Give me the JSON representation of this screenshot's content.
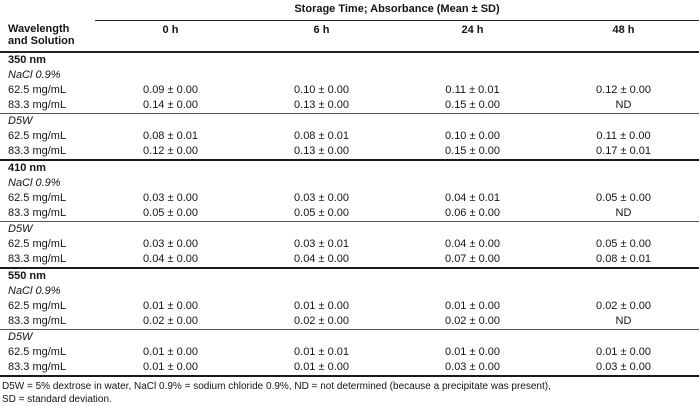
{
  "table": {
    "span_header": "Storage Time; Absorbance (Mean ± SD)",
    "row_header_line1": "Wavelength",
    "row_header_line2": "and Solution",
    "columns": [
      "0 h",
      "6 h",
      "24 h",
      "48 h"
    ],
    "sections": [
      {
        "wavelength": "350 nm",
        "groups": [
          {
            "solution": "NaCl 0.9%",
            "rows": [
              {
                "label": "62.5 mg/mL",
                "values": [
                  "0.09 ± 0.00",
                  "0.10 ± 0.00",
                  "0.11 ± 0.01",
                  "0.12 ± 0.00"
                ]
              },
              {
                "label": "83.3 mg/mL",
                "values": [
                  "0.14 ± 0.00",
                  "0.13 ± 0.00",
                  "0.15 ± 0.00",
                  "ND"
                ]
              }
            ]
          },
          {
            "solution": "D5W",
            "rows": [
              {
                "label": "62.5 mg/mL",
                "values": [
                  "0.08 ± 0.01",
                  "0.08 ± 0.01",
                  "0.10 ± 0.00",
                  "0.11 ± 0.00"
                ]
              },
              {
                "label": "83.3 mg/mL",
                "values": [
                  "0.12 ± 0.00",
                  "0.13 ± 0.00",
                  "0.15 ± 0.00",
                  "0.17 ± 0.01"
                ]
              }
            ]
          }
        ]
      },
      {
        "wavelength": "410 nm",
        "groups": [
          {
            "solution": "NaCl 0.9%",
            "rows": [
              {
                "label": "62.5 mg/mL",
                "values": [
                  "0.03 ± 0.00",
                  "0.03 ± 0.00",
                  "0.04 ± 0.01",
                  "0.05 ± 0.00"
                ]
              },
              {
                "label": "83.3 mg/mL",
                "values": [
                  "0.05 ± 0.00",
                  "0.05 ± 0.00",
                  "0.06 ± 0.00",
                  "ND"
                ]
              }
            ]
          },
          {
            "solution": "D5W",
            "rows": [
              {
                "label": "62.5 mg/mL",
                "values": [
                  "0.03 ± 0.00",
                  "0.03 ± 0.01",
                  "0.04 ± 0.00",
                  "0.05 ± 0.00"
                ]
              },
              {
                "label": "83.3 mg/mL",
                "values": [
                  "0.04 ± 0.00",
                  "0.04 ± 0.00",
                  "0.07 ± 0.00",
                  "0.08 ± 0.01"
                ]
              }
            ]
          }
        ]
      },
      {
        "wavelength": "550 nm",
        "groups": [
          {
            "solution": "NaCl 0.9%",
            "rows": [
              {
                "label": "62.5 mg/mL",
                "values": [
                  "0.01 ± 0.00",
                  "0.01 ± 0.00",
                  "0.01 ± 0.00",
                  "0.02 ± 0.00"
                ]
              },
              {
                "label": "83.3 mg/mL",
                "values": [
                  "0.02 ± 0.00",
                  "0.02 ± 0.00",
                  "0.02 ± 0.00",
                  "ND"
                ]
              }
            ]
          },
          {
            "solution": "D5W",
            "rows": [
              {
                "label": "62.5 mg/mL",
                "values": [
                  "0.01 ± 0.00",
                  "0.01 ± 0.01",
                  "0.01 ± 0.00",
                  "0.01 ± 0.00"
                ]
              },
              {
                "label": "83.3 mg/mL",
                "values": [
                  "0.01 ± 0.00",
                  "0.01 ± 0.00",
                  "0.03 ± 0.00",
                  "0.03 ± 0.00"
                ]
              }
            ]
          }
        ]
      }
    ],
    "footnote_line1": "D5W = 5% dextrose in water, NaCl 0.9% = sodium chloride 0.9%, ND = not determined (because a precipitate was present),",
    "footnote_line2": "SD = standard deviation."
  }
}
